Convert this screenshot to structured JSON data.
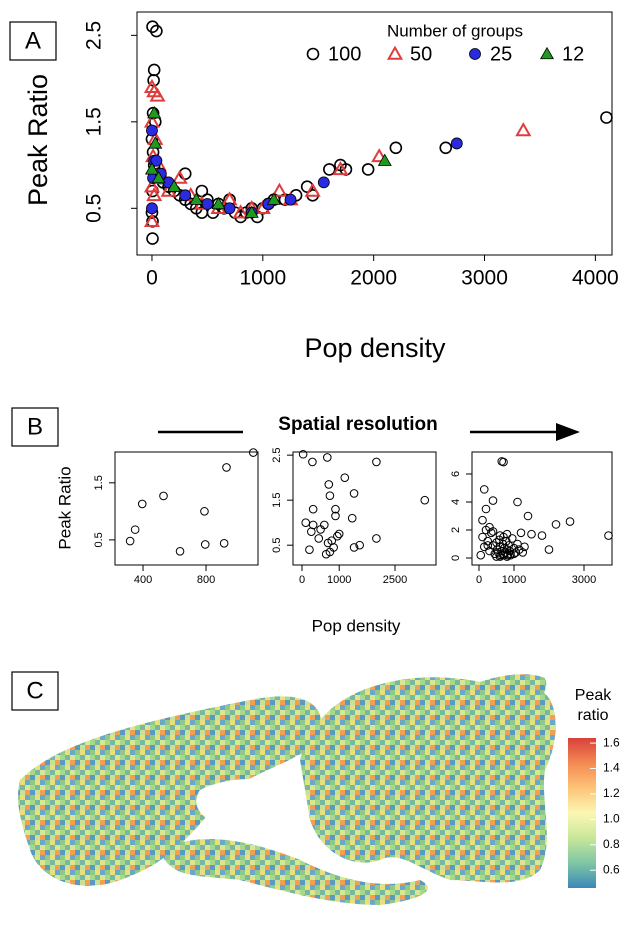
{
  "chart_data": [
    {
      "type": "scatter",
      "panel_label": "A",
      "x_label": "Pop density",
      "y_label": "Peak Ratio",
      "legend_title": "Number of groups",
      "legend_position": "top-right",
      "xlim": [
        -135,
        4150
      ],
      "ylim": [
        -0.04,
        2.77
      ],
      "xticks": [
        0,
        1000,
        2000,
        3000,
        4000
      ],
      "yticks": [
        0.5,
        1.5,
        2.5
      ],
      "series": [
        {
          "name": "100",
          "color": "#000000",
          "marker": "circle",
          "filled": false,
          "x": [
            5,
            40,
            20,
            15,
            10,
            30,
            0,
            10,
            20,
            5,
            0,
            5,
            5,
            60,
            80,
            100,
            150,
            200,
            250,
            300,
            350,
            400,
            450,
            500,
            550,
            600,
            650,
            700,
            750,
            800,
            850,
            900,
            950,
            1000,
            1050,
            1100,
            1200,
            1300,
            1400,
            1450,
            1600,
            1700,
            1750,
            1950,
            2200,
            2650,
            4100,
            300,
            450
          ],
          "values": [
            2.6,
            2.55,
            2.1,
            1.98,
            1.6,
            1.5,
            1.3,
            1.15,
            1.0,
            0.7,
            0.45,
            0.35,
            0.15,
            0.9,
            0.85,
            0.8,
            0.75,
            0.7,
            0.65,
            0.6,
            0.55,
            0.5,
            0.45,
            0.6,
            0.45,
            0.55,
            0.5,
            0.6,
            0.45,
            0.4,
            0.45,
            0.5,
            0.4,
            0.5,
            0.55,
            0.6,
            0.6,
            0.65,
            0.75,
            0.65,
            0.95,
            1.0,
            0.95,
            0.95,
            1.2,
            1.2,
            1.55,
            0.9,
            0.7
          ]
        },
        {
          "name": "50",
          "color": "#e03c3c",
          "marker": "triangle",
          "filled": false,
          "x": [
            0,
            20,
            50,
            0,
            30,
            10,
            0,
            20,
            0,
            60,
            100,
            150,
            250,
            350,
            450,
            600,
            700,
            800,
            900,
            1000,
            1150,
            1250,
            1450,
            1700,
            2050,
            3350
          ],
          "values": [
            1.9,
            1.85,
            1.8,
            1.5,
            1.3,
            1.1,
            0.75,
            0.65,
            0.35,
            1.0,
            0.85,
            0.7,
            0.85,
            0.65,
            0.55,
            0.5,
            0.6,
            0.45,
            0.5,
            0.5,
            0.7,
            0.6,
            0.7,
            0.95,
            1.1,
            1.4
          ]
        },
        {
          "name": "25",
          "color": "#2a2ae0",
          "marker": "circle",
          "filled": true,
          "x": [
            0,
            10,
            20,
            40,
            80,
            150,
            300,
            500,
            700,
            900,
            1050,
            1250,
            1550,
            2750,
            0
          ],
          "values": [
            0.5,
            0.85,
            1.05,
            1.05,
            0.9,
            0.8,
            0.65,
            0.55,
            0.5,
            0.45,
            0.55,
            0.6,
            0.8,
            1.25,
            1.4
          ]
        },
        {
          "name": "12",
          "color": "#1e9a1e",
          "marker": "triangle",
          "filled": true,
          "x": [
            20,
            30,
            0,
            60,
            200,
            400,
            600,
            900,
            1100,
            2100
          ],
          "values": [
            1.6,
            1.25,
            0.95,
            0.85,
            0.75,
            0.6,
            0.55,
            0.45,
            0.6,
            1.05
          ]
        }
      ]
    },
    {
      "type": "small_multiples",
      "panel_label": "B",
      "title": "Spatial resolution",
      "x_label": "Pop density",
      "y_label": "Peak Ratio",
      "color": "#000000",
      "marker": "circle",
      "subplots": [
        {
          "xlim": [
            222,
            1130
          ],
          "ylim": [
            0.06,
            2.04
          ],
          "xticks": [
            400,
            800
          ],
          "yticks": [
            0.5,
            1.5
          ],
          "x": [
            318,
            350,
            395,
            530,
            635,
            790,
            795,
            915,
            930,
            1100
          ],
          "values": [
            0.48,
            0.68,
            1.13,
            1.27,
            0.3,
            1.0,
            0.42,
            0.44,
            1.77,
            2.03
          ]
        },
        {
          "xlim": [
            -242,
            3602
          ],
          "ylim": [
            0.06,
            2.57
          ],
          "xticks": [
            0,
            1000,
            2500
          ],
          "yticks": [
            0.5,
            1.5,
            2.5
          ],
          "x": [
            30,
            280,
            680,
            720,
            2000,
            3300,
            750,
            900,
            1150,
            1400,
            1350,
            100,
            300,
            500,
            600,
            250,
            450,
            700,
            800,
            850,
            1000,
            900,
            1550,
            1400,
            2000,
            200,
            650,
            750,
            950,
            300
          ],
          "values": [
            2.52,
            2.35,
            2.45,
            1.85,
            2.35,
            1.5,
            1.6,
            1.15,
            2.0,
            1.65,
            1.1,
            1.0,
            0.95,
            0.85,
            0.95,
            0.8,
            0.65,
            0.55,
            0.6,
            0.45,
            0.75,
            1.3,
            0.5,
            0.45,
            0.65,
            0.4,
            0.3,
            0.35,
            0.7,
            1.3
          ]
        },
        {
          "xlim": [
            -200,
            3800
          ],
          "ylim": [
            -0.5,
            7.57
          ],
          "xticks": [
            0,
            1000,
            3000
          ],
          "yticks": [
            0,
            2,
            4,
            6
          ],
          "x": [
            650,
            700,
            150,
            400,
            1100,
            1400,
            2600,
            3700,
            2200,
            1800,
            2000,
            1500,
            200,
            100,
            50,
            100,
            150,
            200,
            250,
            300,
            350,
            400,
            450,
            500,
            520,
            550,
            580,
            600,
            620,
            650,
            680,
            700,
            720,
            750,
            780,
            800,
            820,
            850,
            880,
            900,
            950,
            1000,
            1050,
            1100,
            1150,
            1200,
            1300,
            300,
            400,
            500,
            600,
            700,
            800,
            900,
            1000,
            600,
            700,
            800,
            250,
            1250
          ],
          "values": [
            6.9,
            6.85,
            4.9,
            4.1,
            4.0,
            3.0,
            2.6,
            1.6,
            2.4,
            1.6,
            0.6,
            1.7,
            3.5,
            2.7,
            0.2,
            1.5,
            0.8,
            2.0,
            1.2,
            0.5,
            1.8,
            0.9,
            0.3,
            1.1,
            0.6,
            0.4,
            1.3,
            0.8,
            0.2,
            0.5,
            1.0,
            0.3,
            0.7,
            0.4,
            1.2,
            0.6,
            0.2,
            0.9,
            0.5,
            0.3,
            1.4,
            0.7,
            0.4,
            1.0,
            0.6,
            1.8,
            0.8,
            2.2,
            1.9,
            0.1,
            0.1,
            0.2,
            0.1,
            0.2,
            0.3,
            1.6,
            1.5,
            1.7,
            0.9,
            0.4
          ]
        }
      ]
    },
    {
      "type": "map",
      "panel_label": "C",
      "colorbar_title": "Peak ratio",
      "clim": [
        0.46,
        1.64
      ],
      "cticks": [
        0.6,
        0.8,
        {
          "value": 1,
          "label": "1.0"
        },
        1.2,
        1.4,
        1.6
      ],
      "colors": [
        "#3b88b8",
        "#7fc6a4",
        "#c8e79a",
        "#fbf7b4",
        "#fdc477",
        "#f48a53",
        "#d7413b"
      ]
    }
  ]
}
